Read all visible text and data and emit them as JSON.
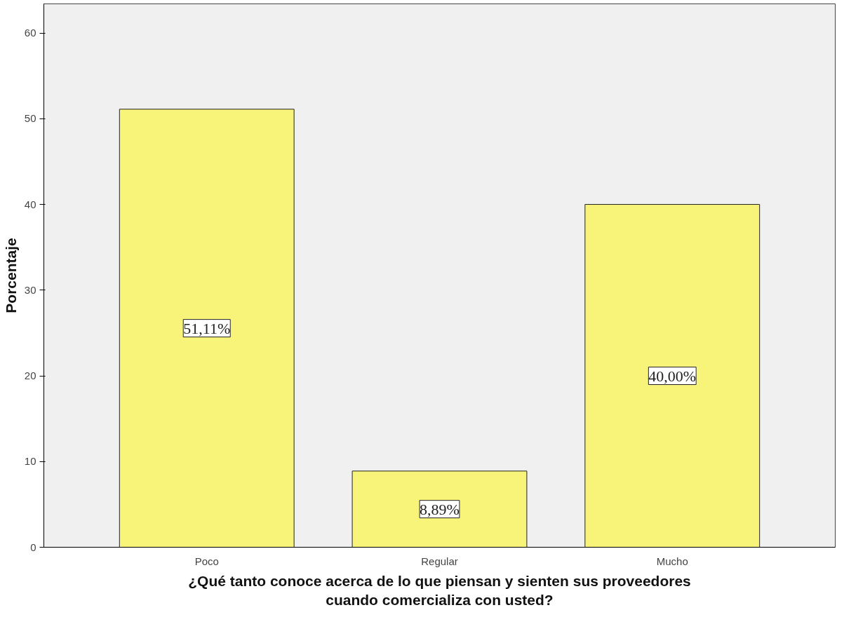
{
  "chart_data": {
    "type": "bar",
    "xlabel": "¿Qué tanto conoce acerca de lo que piensan y sienten sus proveedores\ncuando comercializa con usted?",
    "ylabel": "Porcentaje",
    "categories": [
      "Poco",
      "Regular",
      "Mucho"
    ],
    "values": [
      51.11,
      8.89,
      40.0
    ],
    "value_labels": [
      "51,11%",
      "8,89%",
      "40,00%"
    ],
    "color": "#f8f47a",
    "ylim": [
      0,
      63.4
    ],
    "yticks": [
      0,
      10,
      20,
      30,
      40,
      50,
      60
    ],
    "grid": false
  }
}
